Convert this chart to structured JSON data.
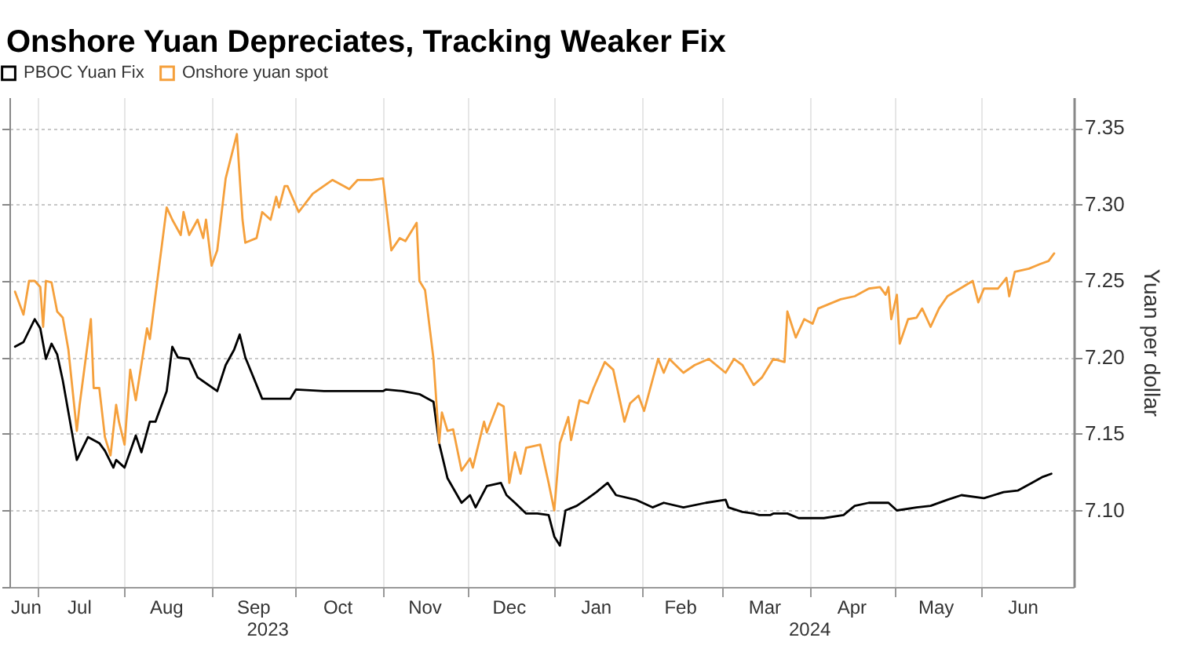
{
  "chart_data": {
    "type": "line",
    "title": "Onshore Yuan Depreciates, Tracking Weaker Fix",
    "ylabel": "Yuan per dollar",
    "legend": "top left",
    "grid": true,
    "xlim": [
      "2023-06-21",
      "2024-07-04"
    ],
    "ylim": [
      7.05,
      7.37
    ],
    "xticks": [
      {
        "value": "2023-06-27",
        "label": "Jun"
      },
      {
        "value": "2023-07-01",
        "label": null
      },
      {
        "value": "2023-07-16",
        "label": "Jul"
      },
      {
        "value": "2023-08-01",
        "label": null
      },
      {
        "value": "2023-08-16",
        "label": "Aug"
      },
      {
        "value": "2023-09-01",
        "label": null
      },
      {
        "value": "2023-09-16",
        "label": "Sep"
      },
      {
        "value": "2023-10-01",
        "label": null
      },
      {
        "value": "2023-10-16",
        "label": "Oct"
      },
      {
        "value": "2023-11-01",
        "label": null
      },
      {
        "value": "2023-11-16",
        "label": "Nov"
      },
      {
        "value": "2023-12-01",
        "label": null
      },
      {
        "value": "2023-12-16",
        "label": "Dec"
      },
      {
        "value": "2024-01-01",
        "label": null
      },
      {
        "value": "2024-01-16",
        "label": "Jan"
      },
      {
        "value": "2024-02-01",
        "label": null
      },
      {
        "value": "2024-02-15",
        "label": "Feb"
      },
      {
        "value": "2024-03-01",
        "label": null
      },
      {
        "value": "2024-03-16",
        "label": "Mar"
      },
      {
        "value": "2024-04-01",
        "label": null
      },
      {
        "value": "2024-04-16",
        "label": "Apr"
      },
      {
        "value": "2024-05-01",
        "label": null
      },
      {
        "value": "2024-05-16",
        "label": "May"
      },
      {
        "value": "2024-06-01",
        "label": null
      },
      {
        "value": "2024-06-16",
        "label": "Jun"
      }
    ],
    "annotations": [
      "2023",
      "2024"
    ],
    "yticks": [
      {
        "value": 7.1,
        "label": "7.10"
      },
      7.15,
      {
        "value": 7.2,
        "label": "7.20"
      },
      7.25,
      {
        "value": 7.3,
        "label": "7.30"
      },
      7.35
    ],
    "series": [
      {
        "name": "PBOC Yuan Fix",
        "color": "#000000",
        "x": [
          "2023-06-23",
          "2023-06-26",
          "2023-06-30",
          "2023-07-02",
          "2023-07-04",
          "2023-07-06",
          "2023-07-08",
          "2023-07-10",
          "2023-07-15",
          "2023-07-19",
          "2023-07-23",
          "2023-07-25",
          "2023-07-28",
          "2023-07-29",
          "2023-08-01",
          "2023-08-05",
          "2023-08-07",
          "2023-08-10",
          "2023-08-12",
          "2023-08-16",
          "2023-08-18",
          "2023-08-20",
          "2023-08-24",
          "2023-08-27",
          "2023-09-03",
          "2023-09-06",
          "2023-09-09",
          "2023-09-11",
          "2023-09-13",
          "2023-09-19",
          "2023-09-29",
          "2023-10-01",
          "2023-10-11",
          "2023-10-23",
          "2023-11-01",
          "2023-11-02",
          "2023-11-08",
          "2023-11-14",
          "2023-11-19",
          "2023-11-21",
          "2023-11-24",
          "2023-11-29",
          "2023-12-02",
          "2023-12-04",
          "2023-12-08",
          "2023-12-13",
          "2023-12-15",
          "2023-12-18",
          "2023-12-22",
          "2023-12-26",
          "2023-12-30",
          "2024-01-01",
          "2024-01-03",
          "2024-01-05",
          "2024-01-09",
          "2024-01-13",
          "2024-01-16",
          "2024-01-20",
          "2024-01-23",
          "2024-01-30",
          "2024-02-05",
          "2024-02-09",
          "2024-02-16",
          "2024-02-24",
          "2024-03-02",
          "2024-03-03",
          "2024-03-08",
          "2024-03-12",
          "2024-03-14",
          "2024-03-18",
          "2024-03-19",
          "2024-03-24",
          "2024-03-28",
          "2024-04-06",
          "2024-04-13",
          "2024-04-17",
          "2024-04-22",
          "2024-04-29",
          "2024-05-02",
          "2024-05-09",
          "2024-05-14",
          "2024-05-20",
          "2024-05-25",
          "2024-06-02",
          "2024-06-09",
          "2024-06-14",
          "2024-06-19",
          "2024-06-23",
          "2024-06-26"
        ],
        "values": [
          7.207,
          7.21,
          7.225,
          7.219,
          7.199,
          7.209,
          7.202,
          7.185,
          7.133,
          7.148,
          7.144,
          7.139,
          7.128,
          7.133,
          7.128,
          7.149,
          7.138,
          7.158,
          7.158,
          7.178,
          7.207,
          7.2,
          7.199,
          7.187,
          7.178,
          7.195,
          7.205,
          7.215,
          7.2,
          7.173,
          7.173,
          7.179,
          7.178,
          7.178,
          7.178,
          7.179,
          7.178,
          7.176,
          7.171,
          7.144,
          7.121,
          7.105,
          7.11,
          7.102,
          7.116,
          7.118,
          7.11,
          7.105,
          7.098,
          7.098,
          7.097,
          7.083,
          7.077,
          7.1,
          7.103,
          7.108,
          7.112,
          7.118,
          7.11,
          7.107,
          7.102,
          7.105,
          7.102,
          7.105,
          7.107,
          7.102,
          7.099,
          7.098,
          7.097,
          7.097,
          7.098,
          7.098,
          7.095,
          7.095,
          7.097,
          7.103,
          7.105,
          7.105,
          7.1,
          7.102,
          7.103,
          7.107,
          7.11,
          7.108,
          7.112,
          7.113,
          7.118,
          7.122,
          7.124
        ]
      },
      {
        "name": "Onshore yuan spot",
        "color": "#f5a03c",
        "x": [
          "2023-06-23",
          "2023-06-26",
          "2023-06-28",
          "2023-06-30",
          "2023-07-02",
          "2023-07-03",
          "2023-07-04",
          "2023-07-06",
          "2023-07-08",
          "2023-07-10",
          "2023-07-12",
          "2023-07-15",
          "2023-07-16",
          "2023-07-20",
          "2023-07-21",
          "2023-07-23",
          "2023-07-25",
          "2023-07-27",
          "2023-07-29",
          "2023-07-30",
          "2023-08-01",
          "2023-08-03",
          "2023-08-05",
          "2023-08-09",
          "2023-08-10",
          "2023-08-16",
          "2023-08-18",
          "2023-08-21",
          "2023-08-22",
          "2023-08-24",
          "2023-08-27",
          "2023-08-29",
          "2023-08-30",
          "2023-09-01",
          "2023-09-03",
          "2023-09-06",
          "2023-09-10",
          "2023-09-12",
          "2023-09-13",
          "2023-09-17",
          "2023-09-19",
          "2023-09-22",
          "2023-09-24",
          "2023-09-25",
          "2023-09-27",
          "2023-09-28",
          "2023-10-02",
          "2023-10-07",
          "2023-10-14",
          "2023-10-18",
          "2023-10-20",
          "2023-10-23",
          "2023-10-28",
          "2023-11-01",
          "2023-11-04",
          "2023-11-07",
          "2023-11-09",
          "2023-11-13",
          "2023-11-14",
          "2023-11-16",
          "2023-11-19",
          "2023-11-21",
          "2023-11-22",
          "2023-11-24",
          "2023-11-26",
          "2023-11-29",
          "2023-12-02",
          "2023-12-03",
          "2023-12-07",
          "2023-12-08",
          "2023-12-12",
          "2023-12-14",
          "2023-12-16",
          "2023-12-18",
          "2023-12-20",
          "2023-12-22",
          "2023-12-27",
          "2023-12-30",
          "2024-01-01",
          "2024-01-03",
          "2024-01-06",
          "2024-01-07",
          "2024-01-10",
          "2024-01-13",
          "2024-01-15",
          "2024-01-19",
          "2024-01-22",
          "2024-01-26",
          "2024-01-28",
          "2024-01-31",
          "2024-02-02",
          "2024-02-07",
          "2024-02-09",
          "2024-02-11",
          "2024-02-16",
          "2024-02-20",
          "2024-02-25",
          "2024-03-02",
          "2024-03-05",
          "2024-03-08",
          "2024-03-12",
          "2024-03-15",
          "2024-03-19",
          "2024-03-23",
          "2024-03-24",
          "2024-03-27",
          "2024-03-30",
          "2024-04-02",
          "2024-04-04",
          "2024-04-12",
          "2024-04-17",
          "2024-04-22",
          "2024-04-26",
          "2024-04-28",
          "2024-04-29",
          "2024-04-30",
          "2024-05-02",
          "2024-05-03",
          "2024-05-06",
          "2024-05-09",
          "2024-05-11",
          "2024-05-14",
          "2024-05-17",
          "2024-05-20",
          "2024-05-29",
          "2024-05-31",
          "2024-06-02",
          "2024-06-07",
          "2024-06-10",
          "2024-06-11",
          "2024-06-13",
          "2024-06-18",
          "2024-06-22",
          "2024-06-25",
          "2024-06-27"
        ],
        "values": [
          7.243,
          7.228,
          7.25,
          7.25,
          7.246,
          7.22,
          7.25,
          7.249,
          7.23,
          7.226,
          7.205,
          7.152,
          7.169,
          7.225,
          7.18,
          7.18,
          7.148,
          7.136,
          7.169,
          7.158,
          7.143,
          7.192,
          7.172,
          7.219,
          7.212,
          7.298,
          7.29,
          7.28,
          7.295,
          7.28,
          7.29,
          7.278,
          7.29,
          7.26,
          7.27,
          7.317,
          7.346,
          7.29,
          7.275,
          7.278,
          7.295,
          7.29,
          7.305,
          7.298,
          7.312,
          7.312,
          7.295,
          7.307,
          7.316,
          7.312,
          7.31,
          7.316,
          7.316,
          7.317,
          7.27,
          7.278,
          7.276,
          7.288,
          7.25,
          7.244,
          7.199,
          7.144,
          7.164,
          7.152,
          7.153,
          7.126,
          7.134,
          7.128,
          7.158,
          7.151,
          7.17,
          7.168,
          7.118,
          7.138,
          7.124,
          7.141,
          7.143,
          7.118,
          7.1,
          7.144,
          7.161,
          7.146,
          7.172,
          7.17,
          7.18,
          7.197,
          7.192,
          7.158,
          7.17,
          7.175,
          7.165,
          7.199,
          7.19,
          7.199,
          7.19,
          7.195,
          7.199,
          7.19,
          7.199,
          7.195,
          7.182,
          7.187,
          7.199,
          7.197,
          7.23,
          7.213,
          7.225,
          7.222,
          7.232,
          7.238,
          7.24,
          7.245,
          7.246,
          7.241,
          7.246,
          7.225,
          7.241,
          7.209,
          7.225,
          7.226,
          7.232,
          7.22,
          7.232,
          7.24,
          7.25,
          7.236,
          7.245,
          7.245,
          7.252,
          7.24,
          7.256,
          7.258,
          7.261,
          7.263,
          7.268
        ]
      }
    ]
  }
}
